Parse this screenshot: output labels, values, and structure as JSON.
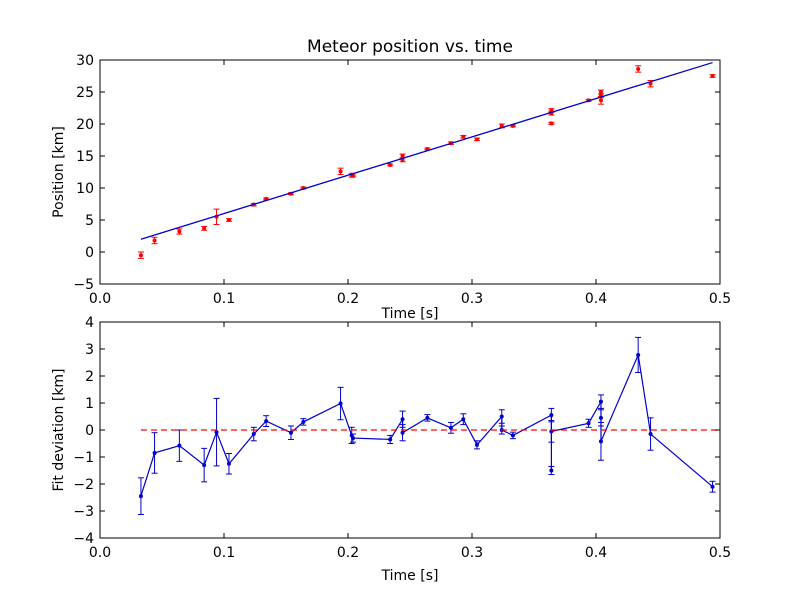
{
  "chart_data": [
    {
      "type": "scatter",
      "title": "Meteor position vs. time",
      "xlabel": "Time [s]",
      "ylabel": "Position [km]",
      "xlim": [
        0.0,
        0.5
      ],
      "ylim": [
        -5,
        30
      ],
      "xticks": [
        "0.0",
        "0.1",
        "0.2",
        "0.3",
        "0.4",
        "0.5"
      ],
      "yticks": [
        "−5",
        "0",
        "5",
        "10",
        "15",
        "20",
        "25",
        "30"
      ],
      "grid": false,
      "series": [
        {
          "kind": "errorbar-points",
          "color": "#ff0000",
          "points": [
            {
              "x": 0.033,
              "y": -0.5,
              "err": 0.5
            },
            {
              "x": 0.044,
              "y": 1.8,
              "err": 0.5
            },
            {
              "x": 0.064,
              "y": 3.2,
              "err": 0.4
            },
            {
              "x": 0.084,
              "y": 3.7,
              "err": 0.3
            },
            {
              "x": 0.094,
              "y": 5.5,
              "err": 1.2
            },
            {
              "x": 0.104,
              "y": 5.0,
              "err": 0.2
            },
            {
              "x": 0.124,
              "y": 7.4,
              "err": 0.2
            },
            {
              "x": 0.134,
              "y": 8.3,
              "err": 0.15
            },
            {
              "x": 0.154,
              "y": 9.1,
              "err": 0.15
            },
            {
              "x": 0.164,
              "y": 10.0,
              "err": 0.15
            },
            {
              "x": 0.194,
              "y": 12.6,
              "err": 0.5
            },
            {
              "x": 0.203,
              "y": 12.0,
              "err": 0.3
            },
            {
              "x": 0.204,
              "y": 11.9,
              "err": 0.15
            },
            {
              "x": 0.234,
              "y": 13.6,
              "err": 0.15
            },
            {
              "x": 0.244,
              "y": 15.0,
              "err": 0.3
            },
            {
              "x": 0.244,
              "y": 14.4,
              "err": 0.3
            },
            {
              "x": 0.264,
              "y": 16.1,
              "err": 0.15
            },
            {
              "x": 0.283,
              "y": 17.0,
              "err": 0.2
            },
            {
              "x": 0.293,
              "y": 18.0,
              "err": 0.2
            },
            {
              "x": 0.304,
              "y": 17.6,
              "err": 0.2
            },
            {
              "x": 0.324,
              "y": 19.7,
              "err": 0.3
            },
            {
              "x": 0.333,
              "y": 19.7,
              "err": 0.15
            },
            {
              "x": 0.364,
              "y": 22.1,
              "err": 0.3
            },
            {
              "x": 0.364,
              "y": 20.1,
              "err": 0.15
            },
            {
              "x": 0.364,
              "y": 21.7,
              "err": 0.3
            },
            {
              "x": 0.394,
              "y": 23.7,
              "err": 0.15
            },
            {
              "x": 0.404,
              "y": 25.0,
              "err": 0.3
            },
            {
              "x": 0.404,
              "y": 24.4,
              "err": 0.3
            },
            {
              "x": 0.404,
              "y": 23.7,
              "err": 0.6
            },
            {
              "x": 0.434,
              "y": 28.6,
              "err": 0.5
            },
            {
              "x": 0.444,
              "y": 26.3,
              "err": 0.5
            },
            {
              "x": 0.494,
              "y": 27.5,
              "err": 0.2
            }
          ]
        },
        {
          "kind": "fit-line",
          "color": "#0000cc",
          "x": [
            0.033,
            0.494
          ],
          "y": [
            2.0,
            29.6
          ]
        }
      ]
    },
    {
      "type": "line",
      "title": "",
      "xlabel": "Time [s]",
      "ylabel": "Fit deviation [km]",
      "xlim": [
        0.0,
        0.5
      ],
      "ylim": [
        -4,
        4
      ],
      "xticks": [
        "0.0",
        "0.1",
        "0.2",
        "0.3",
        "0.4",
        "0.5"
      ],
      "yticks": [
        "−4",
        "−3",
        "−2",
        "−1",
        "0",
        "1",
        "2",
        "3",
        "4"
      ],
      "grid": false,
      "series": [
        {
          "kind": "errorbar-line",
          "color": "#0000cc",
          "points": [
            {
              "x": 0.033,
              "y": -2.45,
              "err": 0.68
            },
            {
              "x": 0.044,
              "y": -0.85,
              "err": 0.75
            },
            {
              "x": 0.064,
              "y": -0.58,
              "err": 0.58
            },
            {
              "x": 0.084,
              "y": -1.3,
              "err": 0.62
            },
            {
              "x": 0.094,
              "y": -0.08,
              "err": 1.25
            },
            {
              "x": 0.104,
              "y": -1.25,
              "err": 0.38
            },
            {
              "x": 0.124,
              "y": -0.15,
              "err": 0.25
            },
            {
              "x": 0.134,
              "y": 0.33,
              "err": 0.2
            },
            {
              "x": 0.154,
              "y": -0.1,
              "err": 0.25
            },
            {
              "x": 0.164,
              "y": 0.3,
              "err": 0.12
            },
            {
              "x": 0.194,
              "y": 0.98,
              "err": 0.6
            },
            {
              "x": 0.203,
              "y": -0.2,
              "err": 0.3
            },
            {
              "x": 0.204,
              "y": -0.3,
              "err": 0.15
            },
            {
              "x": 0.234,
              "y": -0.35,
              "err": 0.15
            },
            {
              "x": 0.244,
              "y": 0.4,
              "err": 0.3
            },
            {
              "x": 0.244,
              "y": -0.1,
              "err": 0.3
            },
            {
              "x": 0.264,
              "y": 0.45,
              "err": 0.12
            },
            {
              "x": 0.283,
              "y": 0.08,
              "err": 0.2
            },
            {
              "x": 0.293,
              "y": 0.4,
              "err": 0.2
            },
            {
              "x": 0.304,
              "y": -0.55,
              "err": 0.15
            },
            {
              "x": 0.324,
              "y": 0.5,
              "err": 0.25
            },
            {
              "x": 0.324,
              "y": 0.0,
              "err": 0.15
            },
            {
              "x": 0.333,
              "y": -0.2,
              "err": 0.12
            },
            {
              "x": 0.364,
              "y": 0.55,
              "err": 0.25
            },
            {
              "x": 0.364,
              "y": -1.5,
              "err": 0.15
            },
            {
              "x": 0.364,
              "y": -0.05,
              "err": 0.4
            },
            {
              "x": 0.394,
              "y": 0.25,
              "err": 0.15
            },
            {
              "x": 0.404,
              "y": 1.05,
              "err": 0.25
            },
            {
              "x": 0.404,
              "y": 0.45,
              "err": 0.3
            },
            {
              "x": 0.404,
              "y": -0.42,
              "err": 0.7
            },
            {
              "x": 0.434,
              "y": 2.78,
              "err": 0.65
            },
            {
              "x": 0.444,
              "y": -0.15,
              "err": 0.6
            },
            {
              "x": 0.494,
              "y": -2.1,
              "err": 0.2
            }
          ]
        },
        {
          "kind": "reference-line",
          "color": "#ff0000",
          "dashed": true,
          "x": [
            0.033,
            0.5
          ],
          "y": [
            0,
            0
          ]
        }
      ]
    }
  ]
}
